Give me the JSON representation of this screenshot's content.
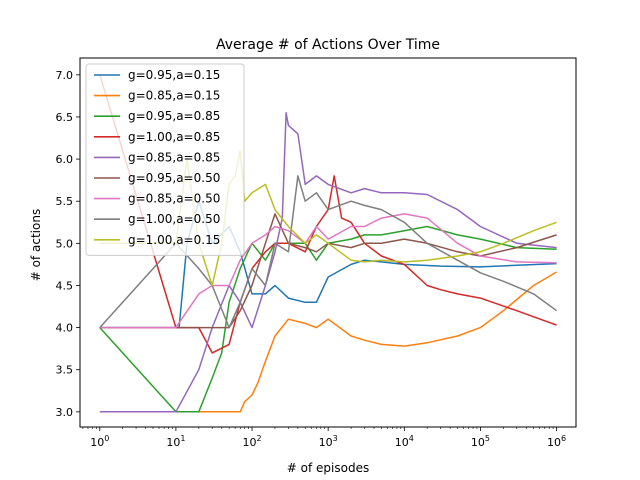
{
  "chart_data": {
    "type": "line",
    "title": "Average # of Actions Over Time",
    "xlabel": "# of episodes",
    "ylabel": "# of actions",
    "x_scale": "log",
    "xlim": [
      0.55,
      1800000
    ],
    "ylim": [
      2.82,
      7.2
    ],
    "x_ticks": [
      {
        "value": 1,
        "base": "10",
        "exp": "0"
      },
      {
        "value": 10,
        "base": "10",
        "exp": "1"
      },
      {
        "value": 100,
        "base": "10",
        "exp": "2"
      },
      {
        "value": 1000,
        "base": "10",
        "exp": "3"
      },
      {
        "value": 10000,
        "base": "10",
        "exp": "4"
      },
      {
        "value": 100000,
        "base": "10",
        "exp": "5"
      },
      {
        "value": 1000000,
        "base": "10",
        "exp": "6"
      }
    ],
    "y_ticks": [
      "3.0",
      "3.5",
      "4.0",
      "4.5",
      "5.0",
      "5.5",
      "6.0",
      "6.5",
      "7.0"
    ],
    "grid": false,
    "legend_position": "upper-left",
    "series": [
      {
        "name": "g=0.95,a=0.15",
        "color": "#1f77b4",
        "points": [
          [
            1,
            4.0
          ],
          [
            10,
            4.0
          ],
          [
            11,
            4.0
          ],
          [
            14,
            5.0
          ],
          [
            20,
            5.5
          ],
          [
            30,
            5.0
          ],
          [
            50,
            5.2
          ],
          [
            70,
            4.9
          ],
          [
            100,
            4.4
          ],
          [
            150,
            4.4
          ],
          [
            200,
            4.5
          ],
          [
            300,
            4.35
          ],
          [
            500,
            4.3
          ],
          [
            700,
            4.3
          ],
          [
            1000,
            4.6
          ],
          [
            2000,
            4.75
          ],
          [
            3000,
            4.8
          ],
          [
            5000,
            4.78
          ],
          [
            10000,
            4.75
          ],
          [
            30000,
            4.73
          ],
          [
            100000,
            4.72
          ],
          [
            300000,
            4.74
          ],
          [
            1000000,
            4.76
          ]
        ]
      },
      {
        "name": "g=0.85,a=0.15",
        "color": "#ff7f0e",
        "points": [
          [
            1,
            3.0
          ],
          [
            10,
            3.0
          ],
          [
            50,
            3.0
          ],
          [
            70,
            3.0
          ],
          [
            80,
            3.12
          ],
          [
            100,
            3.2
          ],
          [
            120,
            3.35
          ],
          [
            150,
            3.6
          ],
          [
            200,
            3.9
          ],
          [
            300,
            4.1
          ],
          [
            500,
            4.05
          ],
          [
            700,
            4.0
          ],
          [
            1000,
            4.1
          ],
          [
            2000,
            3.9
          ],
          [
            3000,
            3.85
          ],
          [
            5000,
            3.8
          ],
          [
            10000,
            3.78
          ],
          [
            20000,
            3.82
          ],
          [
            50000,
            3.9
          ],
          [
            100000,
            4.0
          ],
          [
            200000,
            4.2
          ],
          [
            500000,
            4.5
          ],
          [
            1000000,
            4.66
          ]
        ]
      },
      {
        "name": "g=0.95,a=0.85",
        "color": "#2ca02c",
        "points": [
          [
            1,
            4.0
          ],
          [
            10,
            3.0
          ],
          [
            20,
            3.0
          ],
          [
            30,
            3.4
          ],
          [
            40,
            3.7
          ],
          [
            50,
            4.3
          ],
          [
            70,
            4.7
          ],
          [
            100,
            5.0
          ],
          [
            150,
            4.8
          ],
          [
            200,
            5.0
          ],
          [
            300,
            5.0
          ],
          [
            500,
            5.0
          ],
          [
            700,
            4.8
          ],
          [
            1000,
            5.0
          ],
          [
            2000,
            5.05
          ],
          [
            3000,
            5.1
          ],
          [
            5000,
            5.1
          ],
          [
            10000,
            5.15
          ],
          [
            20000,
            5.2
          ],
          [
            50000,
            5.1
          ],
          [
            100000,
            5.05
          ],
          [
            300000,
            4.95
          ],
          [
            1000000,
            4.93
          ]
        ]
      },
      {
        "name": "g=1.00,a=0.85",
        "color": "#d62728",
        "points": [
          [
            1,
            7.0
          ],
          [
            10,
            4.0
          ],
          [
            20,
            4.0
          ],
          [
            30,
            3.7
          ],
          [
            50,
            3.8
          ],
          [
            70,
            4.3
          ],
          [
            100,
            4.7
          ],
          [
            150,
            4.9
          ],
          [
            200,
            5.0
          ],
          [
            300,
            5.0
          ],
          [
            500,
            4.9
          ],
          [
            700,
            5.2
          ],
          [
            1000,
            5.4
          ],
          [
            1200,
            5.8
          ],
          [
            1500,
            5.3
          ],
          [
            2000,
            5.25
          ],
          [
            3000,
            5.0
          ],
          [
            5000,
            4.85
          ],
          [
            10000,
            4.75
          ],
          [
            20000,
            4.5
          ],
          [
            30000,
            4.45
          ],
          [
            50000,
            4.4
          ],
          [
            100000,
            4.35
          ],
          [
            300000,
            4.2
          ],
          [
            1000000,
            4.03
          ]
        ]
      },
      {
        "name": "g=0.85,a=0.85",
        "color": "#9467bd",
        "points": [
          [
            1,
            3.0
          ],
          [
            10,
            3.0
          ],
          [
            20,
            3.5
          ],
          [
            30,
            4.0
          ],
          [
            50,
            4.5
          ],
          [
            70,
            4.3
          ],
          [
            100,
            4.0
          ],
          [
            150,
            4.5
          ],
          [
            200,
            4.9
          ],
          [
            250,
            5.3
          ],
          [
            280,
            6.55
          ],
          [
            300,
            6.4
          ],
          [
            400,
            6.3
          ],
          [
            500,
            5.7
          ],
          [
            700,
            5.8
          ],
          [
            1000,
            5.7
          ],
          [
            2000,
            5.6
          ],
          [
            3000,
            5.65
          ],
          [
            5000,
            5.6
          ],
          [
            10000,
            5.6
          ],
          [
            20000,
            5.58
          ],
          [
            50000,
            5.4
          ],
          [
            100000,
            5.2
          ],
          [
            300000,
            5.0
          ],
          [
            1000000,
            4.95
          ]
        ]
      },
      {
        "name": "g=0.95,a=0.50",
        "color": "#8c564b",
        "points": [
          [
            1,
            4.0
          ],
          [
            10,
            4.0
          ],
          [
            50,
            4.0
          ],
          [
            70,
            4.2
          ],
          [
            100,
            4.5
          ],
          [
            150,
            5.0
          ],
          [
            200,
            5.35
          ],
          [
            300,
            5.0
          ],
          [
            500,
            4.95
          ],
          [
            700,
            4.9
          ],
          [
            1000,
            5.0
          ],
          [
            2000,
            4.95
          ],
          [
            3000,
            5.0
          ],
          [
            5000,
            5.0
          ],
          [
            10000,
            5.05
          ],
          [
            20000,
            5.0
          ],
          [
            50000,
            4.9
          ],
          [
            100000,
            4.85
          ],
          [
            300000,
            4.95
          ],
          [
            1000000,
            5.1
          ]
        ]
      },
      {
        "name": "g=0.85,a=0.50",
        "color": "#e377c2",
        "points": [
          [
            1,
            4.0
          ],
          [
            10,
            4.0
          ],
          [
            20,
            4.4
          ],
          [
            30,
            4.5
          ],
          [
            50,
            4.5
          ],
          [
            70,
            4.8
          ],
          [
            100,
            5.0
          ],
          [
            150,
            5.1
          ],
          [
            200,
            5.2
          ],
          [
            300,
            5.15
          ],
          [
            500,
            5.0
          ],
          [
            700,
            5.2
          ],
          [
            1000,
            5.05
          ],
          [
            2000,
            5.2
          ],
          [
            3000,
            5.2
          ],
          [
            5000,
            5.3
          ],
          [
            10000,
            5.35
          ],
          [
            20000,
            5.3
          ],
          [
            50000,
            5.0
          ],
          [
            100000,
            4.85
          ],
          [
            300000,
            4.78
          ],
          [
            1000000,
            4.77
          ]
        ]
      },
      {
        "name": "g=1.00,a=0.50",
        "color": "#7f7f7f",
        "points": [
          [
            1,
            4.0
          ],
          [
            10,
            5.0
          ],
          [
            20,
            4.7
          ],
          [
            30,
            4.5
          ],
          [
            50,
            4.0
          ],
          [
            70,
            4.3
          ],
          [
            100,
            4.7
          ],
          [
            150,
            4.5
          ],
          [
            200,
            5.0
          ],
          [
            300,
            4.9
          ],
          [
            400,
            5.8
          ],
          [
            500,
            5.5
          ],
          [
            700,
            5.6
          ],
          [
            1000,
            5.4
          ],
          [
            2000,
            5.5
          ],
          [
            3000,
            5.45
          ],
          [
            5000,
            5.4
          ],
          [
            10000,
            5.25
          ],
          [
            20000,
            5.0
          ],
          [
            50000,
            4.8
          ],
          [
            100000,
            4.65
          ],
          [
            200000,
            4.55
          ],
          [
            500000,
            4.4
          ],
          [
            1000000,
            4.2
          ]
        ]
      },
      {
        "name": "g=1.00,a=0.15",
        "color": "#bcbd22",
        "points": [
          [
            1,
            5.0
          ],
          [
            10,
            5.0
          ],
          [
            14,
            6.0
          ],
          [
            20,
            5.0
          ],
          [
            30,
            4.5
          ],
          [
            40,
            5.0
          ],
          [
            50,
            5.7
          ],
          [
            60,
            5.8
          ],
          [
            70,
            6.1
          ],
          [
            80,
            5.5
          ],
          [
            100,
            5.6
          ],
          [
            150,
            5.7
          ],
          [
            200,
            5.4
          ],
          [
            300,
            5.2
          ],
          [
            500,
            5.0
          ],
          [
            700,
            5.1
          ],
          [
            1000,
            5.0
          ],
          [
            2000,
            4.8
          ],
          [
            3000,
            4.78
          ],
          [
            5000,
            4.8
          ],
          [
            10000,
            4.78
          ],
          [
            20000,
            4.8
          ],
          [
            50000,
            4.85
          ],
          [
            100000,
            4.9
          ],
          [
            200000,
            5.0
          ],
          [
            500000,
            5.15
          ],
          [
            1000000,
            5.25
          ]
        ]
      }
    ]
  }
}
